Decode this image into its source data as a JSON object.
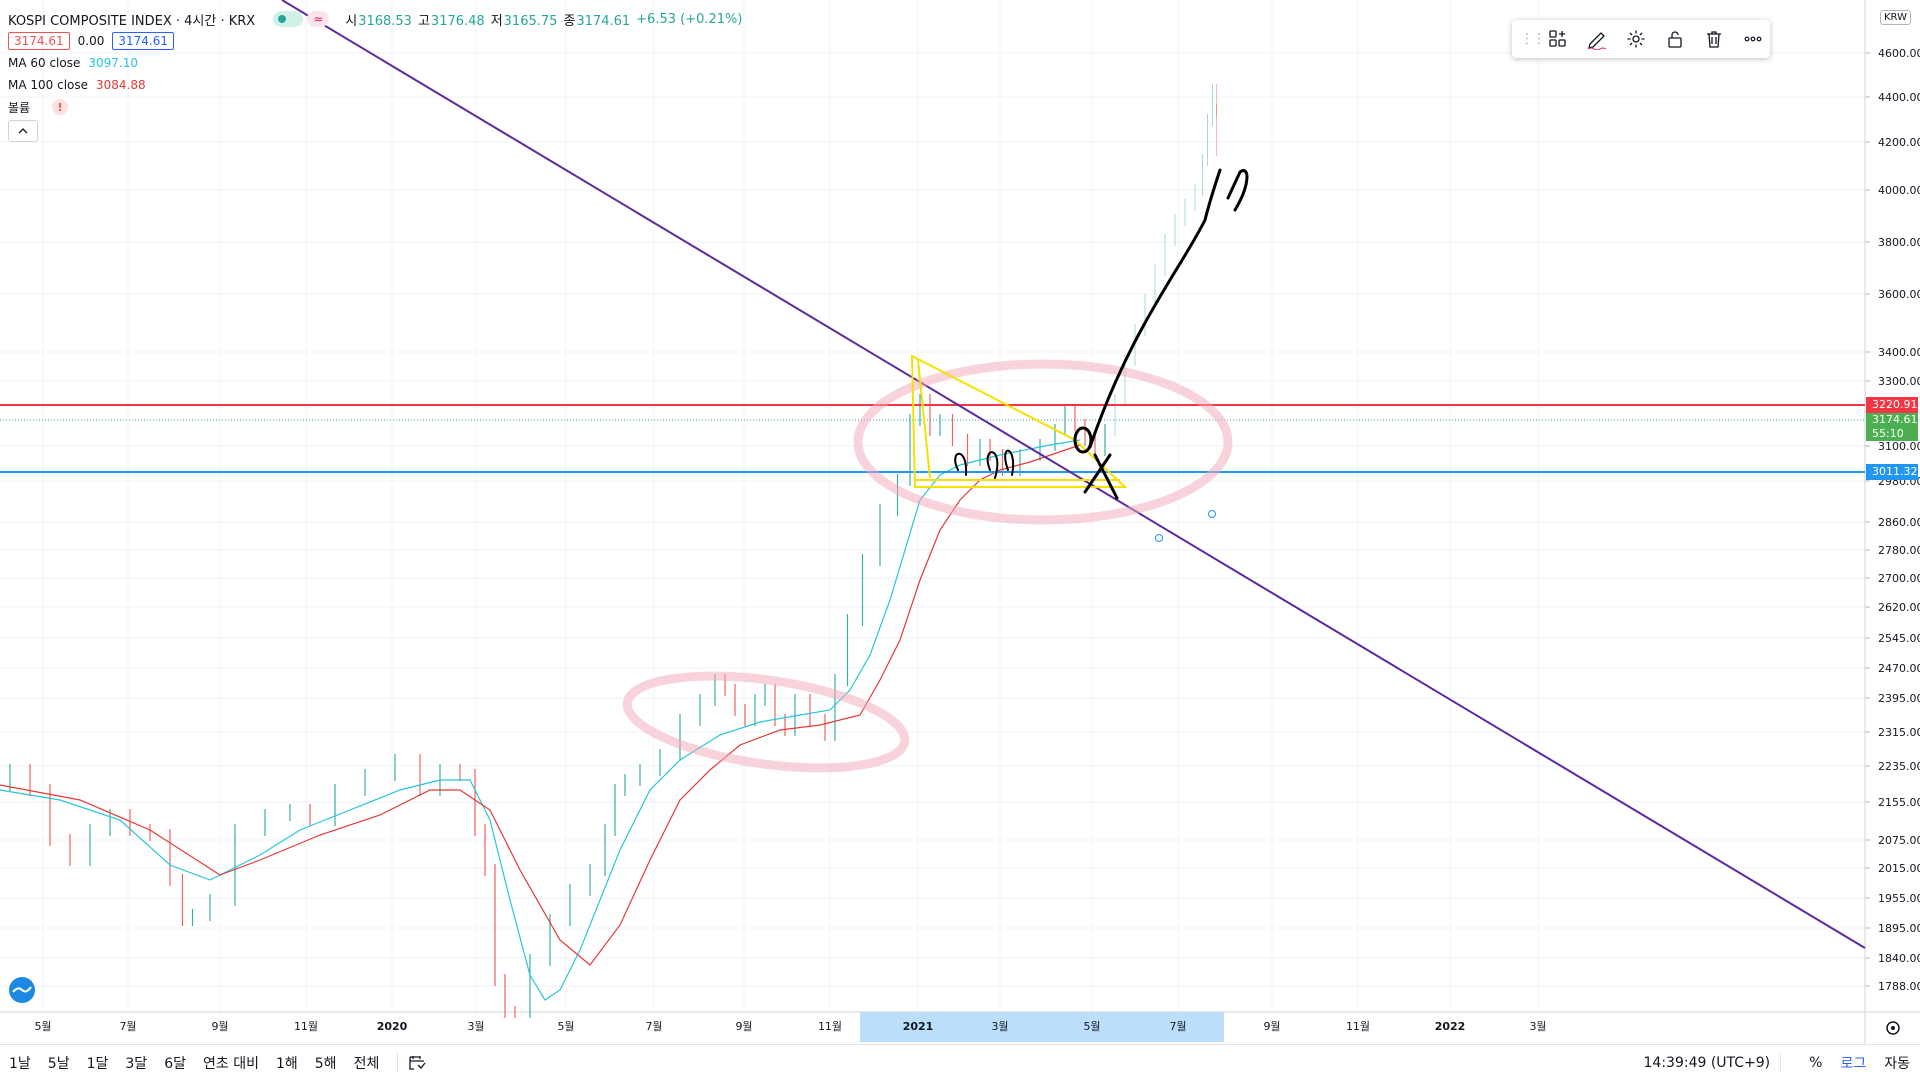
{
  "header": {
    "title": "KOSPI COMPOSITE INDEX · 4시간 · KRX",
    "ohlc": [
      {
        "k": "시",
        "v": "3168.53"
      },
      {
        "k": "고",
        "v": "3176.48"
      },
      {
        "k": "저",
        "v": "3165.75"
      },
      {
        "k": "종",
        "v": "3174.61"
      }
    ],
    "change": "+6.53 (+0.21%)",
    "bid": "3174.61",
    "spread": "0.00",
    "ask": "3174.61",
    "wave_icon": "≈"
  },
  "indicators": [
    {
      "name": "MA 60 close",
      "value": "3097.10",
      "color": "#26c6da"
    },
    {
      "name": "MA 100 close",
      "value": "3084.88",
      "color": "#e53935"
    },
    {
      "name": "볼륨",
      "value": "",
      "warn": "!"
    }
  ],
  "collapse_icon": "chevron-up-icon",
  "price_axis": {
    "currency": "KRW",
    "labels": [
      "4600.00",
      "4400.00",
      "4200.00",
      "4000.00",
      "3800.00",
      "3600.00",
      "3400.00",
      "3300.00",
      "3100.00",
      "2980.00",
      "2860.00",
      "2780.00",
      "2700.00",
      "2620.00",
      "2545.00",
      "2470.00",
      "2395.00",
      "2315.00",
      "2235.00",
      "2155.00",
      "2075.00",
      "2015.00",
      "1955.00",
      "1895.00",
      "1840.00",
      "1788.00"
    ],
    "tag_red": "3220.91",
    "tag_last": "3174.61",
    "tag_countdown": "55:10",
    "tag_blue": "3011.32"
  },
  "time_axis": {
    "labels": [
      "5월",
      "7월",
      "9월",
      "11월",
      "2020",
      "3월",
      "5월",
      "7월",
      "9월",
      "11월",
      "2021",
      "3월",
      "5월",
      "7월",
      "9월",
      "11월",
      "2022",
      "3월"
    ]
  },
  "toolbar": {
    "icons": [
      "template-icon",
      "pencil-icon",
      "gear-icon",
      "lock-icon",
      "trash-icon",
      "more-icon"
    ]
  },
  "bottom": {
    "periods": [
      "1날",
      "5날",
      "1달",
      "3달",
      "6달",
      "연초 대비",
      "1해",
      "5해",
      "전체"
    ],
    "time": "14:39:49 (UTC+9)",
    "percent": "%",
    "log": "로그",
    "auto": "자동"
  },
  "chart_data": {
    "type": "candlestick",
    "title": "KOSPI COMPOSITE INDEX",
    "x": [
      "2019-05",
      "2019-07",
      "2019-09",
      "2019-11",
      "2020-01",
      "2020-03",
      "2020-05",
      "2020-07",
      "2020-09",
      "2020-11",
      "2021-01",
      "2021-03",
      "2021-05",
      "2021-07"
    ],
    "series": [
      {
        "name": "KOSPI",
        "values": [
          2210,
          2080,
          2005,
          2130,
          2230,
          1580,
          1990,
          2200,
          2380,
          2320,
          3100,
          3050,
          3170,
          4300
        ]
      },
      {
        "name": "MA 60 close",
        "values": [
          2190,
          2110,
          2030,
          2110,
          2180,
          1950,
          1810,
          2120,
          2330,
          2370,
          2800,
          3050,
          3110,
          3700
        ]
      },
      {
        "name": "MA 100 close",
        "values": [
          2180,
          2140,
          2060,
          2060,
          2180,
          2110,
          1850,
          2020,
          2260,
          2350,
          2620,
          2980,
          3080,
          3550
        ]
      }
    ],
    "horizontal_lines": [
      3220.91,
      3011.32
    ],
    "log_scale": true
  }
}
